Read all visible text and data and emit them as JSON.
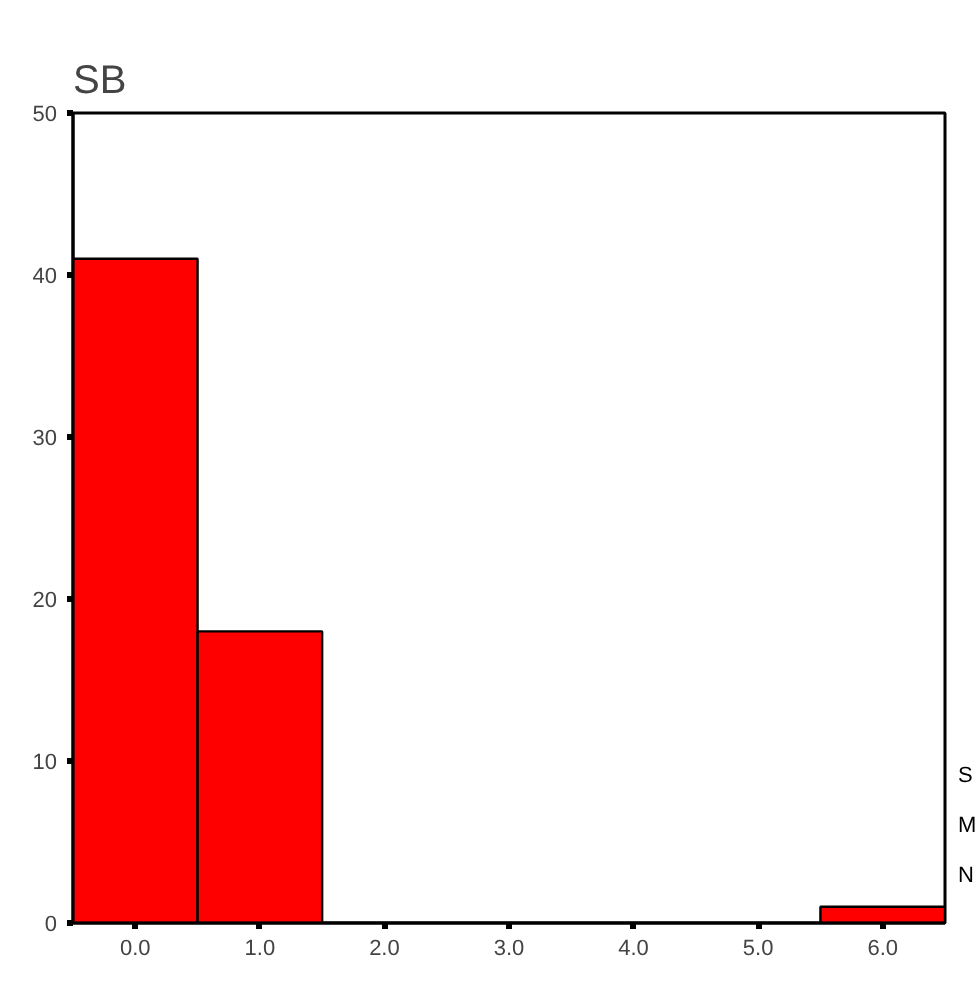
{
  "chart_data": {
    "type": "histogram",
    "title": "SB",
    "bins": [
      -0.5,
      0.5,
      1.5,
      2.5,
      3.5,
      4.5,
      5.5,
      6.5
    ],
    "values": [
      41,
      18,
      0,
      0,
      0,
      0,
      1
    ],
    "color": "#ff0000",
    "xlim": [
      -0.5,
      6.5
    ],
    "xticks": [
      {
        "value": 0,
        "label": "0.0"
      },
      {
        "value": 1,
        "label": "1.0"
      },
      {
        "value": 2,
        "label": "2.0"
      },
      {
        "value": 3,
        "label": "3.0"
      },
      {
        "value": 4,
        "label": "4.0"
      },
      {
        "value": 5,
        "label": "5.0"
      },
      {
        "value": 6,
        "label": "6.0"
      }
    ],
    "ylim": [
      0,
      50
    ],
    "yticks": [
      0,
      10,
      20,
      30,
      40,
      50
    ],
    "grid": false,
    "annotations": [
      "S",
      "M",
      "N"
    ]
  }
}
